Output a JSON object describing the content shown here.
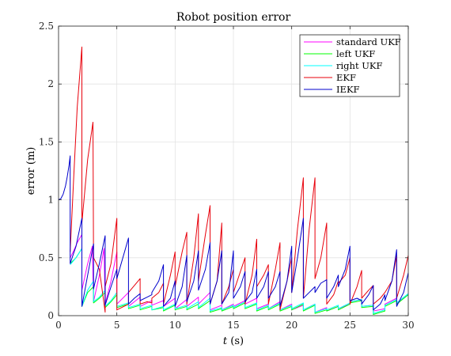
{
  "chart_data": {
    "type": "line",
    "title": "Robot position error",
    "xlabel_var": "t",
    "xlabel_unit": " (s)",
    "ylabel": "error (m)",
    "xlim": [
      0,
      30
    ],
    "ylim": [
      0,
      2.5
    ],
    "xticks": [
      0,
      5,
      10,
      15,
      20,
      25,
      30
    ],
    "yticks": [
      0,
      0.5,
      1,
      1.5,
      2,
      2.5
    ],
    "xtick_labels": [
      "0",
      "5",
      "10",
      "15",
      "20",
      "25",
      "30"
    ],
    "ytick_labels": [
      "0",
      "0.5",
      "1",
      "1.5",
      "2",
      "2.5"
    ],
    "grid": true,
    "legend_position": "top-right",
    "series": [
      {
        "name": "standard UKF",
        "color": "#ff00ff",
        "x": [
          1,
          1.3,
          1.6,
          2,
          2,
          2.5,
          2.9,
          3,
          3.5,
          3.9,
          4,
          4.5,
          5,
          5,
          6,
          6,
          7,
          7,
          8,
          8,
          9,
          9,
          10,
          10,
          11,
          11,
          12,
          12,
          13,
          13,
          14,
          14,
          15,
          15,
          16,
          16,
          17,
          17,
          18,
          18,
          19,
          19,
          20,
          20,
          21,
          21,
          22,
          22,
          23,
          23,
          24,
          24,
          25,
          25,
          26,
          26,
          27,
          27,
          28,
          28,
          29,
          29,
          30
        ],
        "y": [
          0.5,
          0.56,
          0.63,
          0.7,
          0.22,
          0.45,
          0.6,
          0.12,
          0.35,
          0.58,
          0.1,
          0.3,
          0.55,
          0.1,
          0.2,
          0.08,
          0.16,
          0.08,
          0.13,
          0.09,
          0.13,
          0.08,
          0.15,
          0.06,
          0.14,
          0.08,
          0.16,
          0.1,
          0.2,
          0.05,
          0.09,
          0.05,
          0.1,
          0.08,
          0.13,
          0.1,
          0.15,
          0.06,
          0.1,
          0.06,
          0.12,
          0.05,
          0.1,
          0.05,
          0.09,
          0.05,
          0.1,
          0.03,
          0.07,
          0.04,
          0.08,
          0.06,
          0.1,
          0.12,
          0.14,
          0.08,
          0.09,
          0.04,
          0.06,
          0.1,
          0.15,
          0.1,
          0.19
        ]
      },
      {
        "name": "left UKF",
        "color": "#00ff00",
        "x": [
          1,
          1.5,
          2,
          2,
          2.5,
          3,
          3,
          3.5,
          4,
          4,
          4.5,
          5,
          5,
          6,
          6,
          7,
          7,
          8,
          8,
          9,
          9,
          10,
          10,
          11,
          11,
          12,
          12,
          13,
          13,
          14,
          14,
          15,
          15,
          16,
          16,
          17,
          17,
          18,
          18,
          19,
          19,
          20,
          20,
          21,
          21,
          22,
          22,
          23,
          23,
          24,
          24,
          25,
          25,
          26,
          26,
          27,
          27,
          28,
          28,
          29,
          29,
          30
        ],
        "y": [
          0.45,
          0.5,
          0.58,
          0.08,
          0.2,
          0.25,
          0.11,
          0.15,
          0.2,
          0.07,
          0.12,
          0.18,
          0.07,
          0.1,
          0.06,
          0.09,
          0.05,
          0.08,
          0.05,
          0.07,
          0.04,
          0.09,
          0.05,
          0.08,
          0.05,
          0.1,
          0.06,
          0.13,
          0.03,
          0.06,
          0.04,
          0.08,
          0.06,
          0.11,
          0.06,
          0.1,
          0.04,
          0.08,
          0.05,
          0.1,
          0.04,
          0.08,
          0.05,
          0.1,
          0.04,
          0.09,
          0.02,
          0.05,
          0.04,
          0.08,
          0.05,
          0.1,
          0.11,
          0.13,
          0.07,
          0.08,
          0.01,
          0.04,
          0.08,
          0.13,
          0.1,
          0.18
        ]
      },
      {
        "name": "right UKF",
        "color": "#00ffff",
        "x": [
          1,
          1.5,
          2,
          2,
          2.5,
          3,
          3,
          3.5,
          4,
          4,
          4.5,
          5,
          5,
          6,
          6,
          7,
          7,
          8,
          8,
          9,
          9,
          10,
          10,
          11,
          11,
          12,
          12,
          13,
          13,
          14,
          14,
          15,
          15,
          16,
          16,
          17,
          17,
          18,
          18,
          19,
          19,
          20,
          20,
          21,
          21,
          22,
          22,
          23,
          23,
          24,
          24,
          25,
          25,
          26,
          26,
          27,
          27,
          28,
          28,
          29,
          29,
          30
        ],
        "y": [
          0.44,
          0.5,
          0.58,
          0.08,
          0.22,
          0.3,
          0.12,
          0.16,
          0.22,
          0.08,
          0.13,
          0.2,
          0.08,
          0.11,
          0.07,
          0.1,
          0.06,
          0.09,
          0.05,
          0.08,
          0.05,
          0.1,
          0.06,
          0.09,
          0.06,
          0.12,
          0.07,
          0.15,
          0.04,
          0.07,
          0.05,
          0.09,
          0.07,
          0.12,
          0.07,
          0.11,
          0.05,
          0.09,
          0.06,
          0.11,
          0.05,
          0.09,
          0.06,
          0.11,
          0.05,
          0.1,
          0.03,
          0.06,
          0.05,
          0.09,
          0.06,
          0.11,
          0.12,
          0.14,
          0.08,
          0.09,
          0.02,
          0.05,
          0.09,
          0.14,
          0.11,
          0.19
        ]
      },
      {
        "name": "EKF",
        "color": "#e8000b",
        "x": [
          1,
          1.3,
          1.6,
          2,
          2,
          2.5,
          2.95,
          3,
          3.5,
          4,
          4,
          4.5,
          5,
          5,
          6,
          6,
          6.5,
          7,
          7,
          7.6,
          8,
          8,
          8.6,
          9,
          9,
          9.6,
          10,
          10,
          10.6,
          11,
          11,
          11.6,
          12,
          12,
          12.6,
          13,
          13,
          13.6,
          14,
          14,
          14.6,
          15,
          15,
          15.6,
          16,
          16,
          16.6,
          17,
          17,
          17.6,
          18,
          18,
          18.6,
          19,
          19,
          19.6,
          20,
          20,
          20.5,
          21,
          21,
          21.5,
          22,
          22,
          22.5,
          23,
          23,
          23.6,
          24,
          24,
          24.6,
          25,
          25,
          25.6,
          26,
          26,
          26.6,
          27,
          27,
          27.6,
          28,
          28,
          28.6,
          29,
          29,
          29.6,
          30
        ],
        "y": [
          0.55,
          1.2,
          1.8,
          2.32,
          0.8,
          1.35,
          1.67,
          0.5,
          0.4,
          0.03,
          0.25,
          0.45,
          0.84,
          0.05,
          0.1,
          0.2,
          0.26,
          0.32,
          0.1,
          0.12,
          0.11,
          0.15,
          0.2,
          0.28,
          0.1,
          0.35,
          0.55,
          0.25,
          0.55,
          0.72,
          0.1,
          0.5,
          0.88,
          0.3,
          0.7,
          0.95,
          0.1,
          0.3,
          0.8,
          0.1,
          0.25,
          0.4,
          0.2,
          0.38,
          0.5,
          0.1,
          0.35,
          0.66,
          0.25,
          0.35,
          0.44,
          0.1,
          0.4,
          0.63,
          0.05,
          0.3,
          0.5,
          0.2,
          0.75,
          1.19,
          0.15,
          0.75,
          1.19,
          0.32,
          0.5,
          0.8,
          0.1,
          0.18,
          0.3,
          0.28,
          0.35,
          0.5,
          0.1,
          0.25,
          0.39,
          0.15,
          0.22,
          0.26,
          0.1,
          0.15,
          0.2,
          0.2,
          0.3,
          0.52,
          0.15,
          0.35,
          0.52
        ]
      },
      {
        "name": "IEKF",
        "color": "#0000cc",
        "x": [
          0,
          0.2,
          0.4,
          0.6,
          0.75,
          0.9,
          1,
          1,
          1.5,
          2,
          2,
          2.5,
          3,
          3,
          3.5,
          4,
          4,
          4.5,
          5,
          5,
          6,
          6,
          6.5,
          7,
          7,
          7.6,
          8,
          8,
          8.6,
          9,
          9,
          9.6,
          10,
          10,
          10.6,
          11,
          11,
          11.6,
          12,
          12,
          12.6,
          13,
          13,
          13.6,
          14,
          14,
          14.6,
          15,
          15,
          15.6,
          16,
          16,
          16.6,
          17,
          17,
          17.6,
          18,
          18,
          18.6,
          19,
          19,
          19.6,
          20,
          20,
          20.5,
          21,
          21,
          21.5,
          22,
          22,
          22.5,
          23,
          23,
          23.6,
          24,
          24,
          24.6,
          25,
          25,
          25.6,
          26,
          26,
          26.6,
          27,
          27,
          27.6,
          28,
          28,
          28.6,
          29,
          29,
          29.6,
          30
        ],
        "y": [
          1,
          1.01,
          1.05,
          1.12,
          1.2,
          1.3,
          1.38,
          0.45,
          0.6,
          0.84,
          0.08,
          0.35,
          0.62,
          0.23,
          0.45,
          0.69,
          0.09,
          0.25,
          0.4,
          0.32,
          0.67,
          0.1,
          0.15,
          0.19,
          0.13,
          0.16,
          0.18,
          0.2,
          0.3,
          0.44,
          0.08,
          0.15,
          0.3,
          0.08,
          0.25,
          0.52,
          0.12,
          0.3,
          0.56,
          0.22,
          0.4,
          0.63,
          0.1,
          0.3,
          0.56,
          0.1,
          0.2,
          0.56,
          0.15,
          0.25,
          0.38,
          0.12,
          0.2,
          0.4,
          0.15,
          0.25,
          0.38,
          0.15,
          0.25,
          0.38,
          0.08,
          0.3,
          0.6,
          0.2,
          0.5,
          0.84,
          0.15,
          0.2,
          0.25,
          0.2,
          0.28,
          0.31,
          0.15,
          0.25,
          0.35,
          0.25,
          0.4,
          0.6,
          0.13,
          0.15,
          0.13,
          0.1,
          0.18,
          0.26,
          0.05,
          0.1,
          0.18,
          0.13,
          0.3,
          0.57,
          0.08,
          0.2,
          0.37
        ]
      }
    ]
  }
}
